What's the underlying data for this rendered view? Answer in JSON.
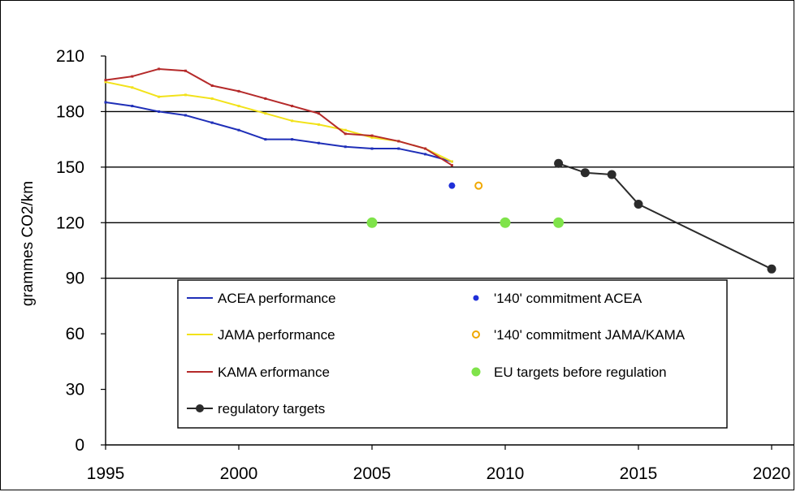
{
  "chart_data": {
    "type": "line",
    "title": "",
    "xlabel": "",
    "ylabel": "grammes CO2/km",
    "xlim": [
      1995,
      2020
    ],
    "ylim": [
      0,
      210
    ],
    "x_ticks": [
      1995,
      2000,
      2005,
      2010,
      2015,
      2020
    ],
    "y_ticks": [
      0,
      30,
      60,
      90,
      120,
      150,
      180,
      210
    ],
    "grid": "horizontal lines at 90, 120, 150, 180",
    "legend_position": "lower-center, inside plot",
    "series": [
      {
        "name": "ACEA performance",
        "kind": "line",
        "color": "#1f2fb8",
        "points": [
          [
            1995,
            185
          ],
          [
            1996,
            183
          ],
          [
            1997,
            180
          ],
          [
            1998,
            178
          ],
          [
            1999,
            174
          ],
          [
            2000,
            170
          ],
          [
            2001,
            165
          ],
          [
            2002,
            165
          ],
          [
            2003,
            163
          ],
          [
            2004,
            161
          ],
          [
            2005,
            160
          ],
          [
            2006,
            160
          ],
          [
            2007,
            157
          ],
          [
            2008,
            153
          ]
        ]
      },
      {
        "name": "JAMA performance",
        "kind": "line",
        "color": "#f2e21a",
        "points": [
          [
            1995,
            196
          ],
          [
            1996,
            193
          ],
          [
            1997,
            188
          ],
          [
            1998,
            189
          ],
          [
            1999,
            187
          ],
          [
            2000,
            183
          ],
          [
            2001,
            179
          ],
          [
            2002,
            175
          ],
          [
            2003,
            173
          ],
          [
            2004,
            170
          ],
          [
            2005,
            166
          ],
          [
            2006,
            164
          ],
          [
            2007,
            160
          ],
          [
            2008,
            153
          ]
        ]
      },
      {
        "name": "KAMA erformance",
        "kind": "line",
        "color": "#b52a2a",
        "points": [
          [
            1995,
            197
          ],
          [
            1996,
            199
          ],
          [
            1997,
            203
          ],
          [
            1998,
            202
          ],
          [
            1999,
            194
          ],
          [
            2000,
            191
          ],
          [
            2001,
            187
          ],
          [
            2002,
            183
          ],
          [
            2003,
            179
          ],
          [
            2004,
            168
          ],
          [
            2005,
            167
          ],
          [
            2006,
            164
          ],
          [
            2007,
            160
          ],
          [
            2008,
            151
          ]
        ]
      },
      {
        "name": "'140' commitment ACEA",
        "kind": "point",
        "color": "#1f2fd8",
        "points": [
          [
            2008,
            140
          ]
        ]
      },
      {
        "name": "'140' commitment JAMA/KAMA",
        "kind": "point-open",
        "color": "#f0a800",
        "points": [
          [
            2009,
            140
          ]
        ]
      },
      {
        "name": "EU targets before regulation",
        "kind": "point",
        "color": "#7fe34a",
        "points": [
          [
            2005,
            120
          ],
          [
            2010,
            120
          ],
          [
            2012,
            120
          ]
        ]
      },
      {
        "name": "regulatory targets",
        "kind": "line-markers",
        "color": "#2b2b2b",
        "points": [
          [
            2012,
            152
          ],
          [
            2013,
            147
          ],
          [
            2014,
            146
          ],
          [
            2015,
            130
          ],
          [
            2020,
            95
          ]
        ]
      }
    ]
  }
}
